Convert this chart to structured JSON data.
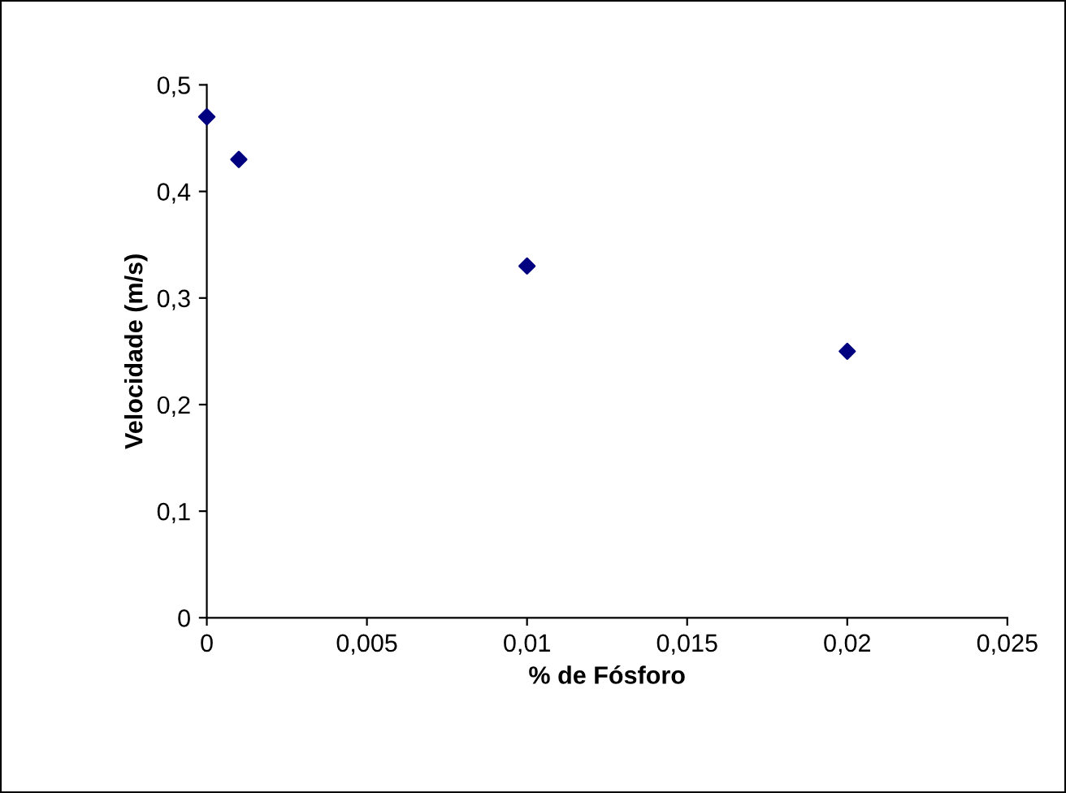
{
  "chart_data": {
    "type": "scatter",
    "xlabel": "% de Fósforo",
    "ylabel": "Velocidade (m/s)",
    "x": [
      0,
      0.001,
      0.01,
      0.02
    ],
    "series": [
      {
        "color": "#000080",
        "values": [
          0.47,
          0.43,
          0.33,
          0.25
        ]
      }
    ],
    "marker": "diamond",
    "grid": false,
    "legend": false,
    "xlim": [
      0,
      0.025
    ],
    "xticks": [
      0,
      {
        "value": 0.005,
        "label": "0,005"
      },
      {
        "value": 0.01,
        "label": "0,01"
      },
      {
        "value": 0.015,
        "label": "0,015"
      },
      {
        "value": 0.02,
        "label": "0,02"
      },
      {
        "value": 0.025,
        "label": "0,025"
      }
    ],
    "ylim": [
      0,
      0.5
    ],
    "yticks": [
      0,
      {
        "value": 0.1,
        "label": "0,1"
      },
      {
        "value": 0.2,
        "label": "0,2"
      },
      {
        "value": 0.3,
        "label": "0,3"
      },
      {
        "value": 0.4,
        "label": "0,4"
      },
      {
        "value": 0.5,
        "label": "0,5"
      }
    ]
  }
}
